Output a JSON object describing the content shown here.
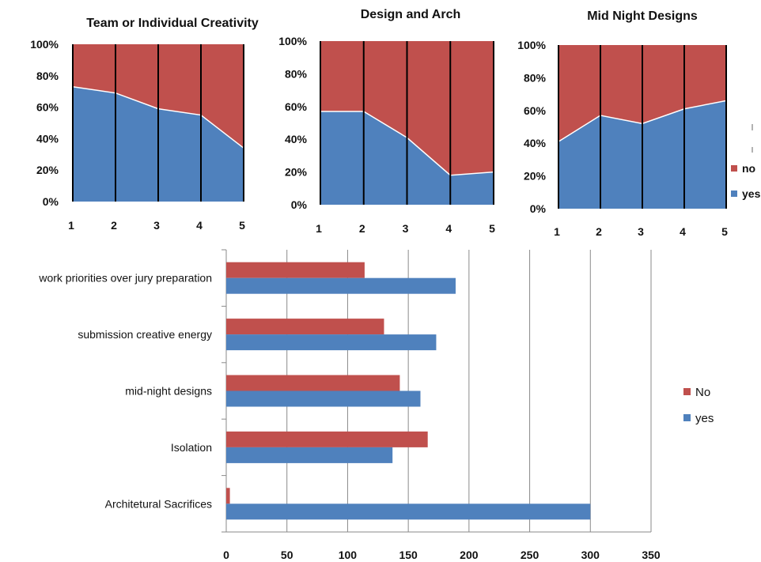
{
  "colors": {
    "yes": "#4F81BD",
    "no": "#C0504D"
  },
  "chart_data": [
    {
      "type": "area",
      "stacked": "percent",
      "title": "Team or Individual Creativity",
      "x": [
        1,
        2,
        3,
        4,
        5
      ],
      "ylim": [
        0,
        100
      ],
      "yticks": [
        "0%",
        "20%",
        "40%",
        "60%",
        "80%",
        "100%"
      ],
      "series": [
        {
          "key": "yes",
          "values": [
            73,
            69,
            59,
            55,
            34
          ]
        },
        {
          "key": "no",
          "values": [
            27,
            31,
            41,
            45,
            66
          ]
        }
      ]
    },
    {
      "type": "area",
      "stacked": "percent",
      "title": "Design and Arch",
      "x": [
        1,
        2,
        3,
        4,
        5
      ],
      "ylim": [
        0,
        100
      ],
      "yticks": [
        "0%",
        "20%",
        "40%",
        "60%",
        "80%",
        "100%"
      ],
      "series": [
        {
          "key": "yes",
          "values": [
            57,
            57,
            41,
            18,
            20
          ]
        },
        {
          "key": "no",
          "values": [
            43,
            43,
            59,
            82,
            80
          ]
        }
      ]
    },
    {
      "type": "area",
      "stacked": "percent",
      "title": "Mid Night Designs",
      "x": [
        1,
        2,
        3,
        4,
        5
      ],
      "ylim": [
        0,
        100
      ],
      "yticks": [
        "0%",
        "20%",
        "40%",
        "60%",
        "80%",
        "100%"
      ],
      "legend": [
        "no",
        "yes"
      ],
      "series": [
        {
          "key": "yes",
          "name": "yes",
          "values": [
            41,
            57,
            52,
            61,
            66
          ]
        },
        {
          "key": "no",
          "name": "no",
          "values": [
            59,
            43,
            48,
            39,
            34
          ]
        }
      ]
    },
    {
      "type": "bar",
      "orientation": "horizontal",
      "categories": [
        "work priorities over jury preparation",
        "submission creative energy",
        "mid-night designs",
        "Isolation",
        "Architetural Sacrifices"
      ],
      "xlim": [
        0,
        350
      ],
      "xticks": [
        0,
        50,
        100,
        150,
        200,
        250,
        300,
        350
      ],
      "grid": true,
      "legend": [
        "No",
        "yes"
      ],
      "series": [
        {
          "key": "no",
          "name": "No",
          "values": [
            114,
            130,
            143,
            166,
            3
          ]
        },
        {
          "key": "yes",
          "name": "yes",
          "values": [
            189,
            173,
            160,
            137,
            300
          ]
        }
      ]
    }
  ]
}
